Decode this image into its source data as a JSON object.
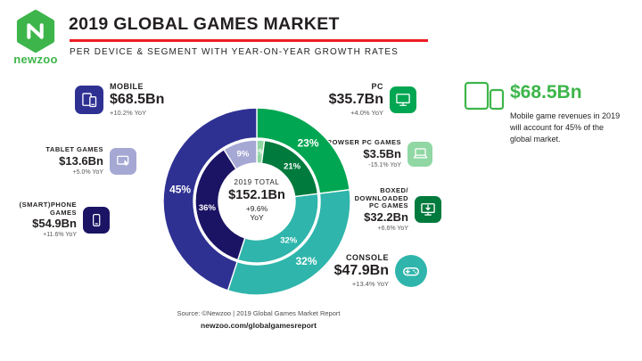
{
  "header": {
    "brand": "newzoo",
    "title": "2019 GLOBAL GAMES MARKET",
    "subtitle": "PER DEVICE & SEGMENT WITH YEAR-ON-YEAR GROWTH RATES",
    "accent_color": "#EC1C24",
    "brand_color": "#3DB54A"
  },
  "segments": {
    "mobile": {
      "label": "MOBILE",
      "value": "$68.5Bn",
      "growth": "+10.2% YoY",
      "color": "#2E3192"
    },
    "tablet": {
      "label": "TABLET GAMES",
      "value": "$13.6Bn",
      "growth": "+5.0% YoY",
      "color": "#A6A8D4"
    },
    "smartphone": {
      "label1": "(SMART)PHONE",
      "label2": "GAMES",
      "value": "$54.9Bn",
      "growth": "+11.6% YoY",
      "color": "#1B1464"
    },
    "pc": {
      "label": "PC",
      "value": "$35.7Bn",
      "growth": "+4.0% YoY",
      "color": "#00A651"
    },
    "browser": {
      "label": "BROWSER PC GAMES",
      "value": "$3.5Bn",
      "growth": "-15.1% YoY",
      "color": "#90D7A4"
    },
    "boxed": {
      "label1": "BOXED/",
      "label2": "DOWNLOADED",
      "label3": "PC GAMES",
      "value": "$32.2Bn",
      "growth": "+6.6% YoY",
      "color": "#007A3D"
    },
    "console": {
      "label": "CONSOLE",
      "value": "$47.9Bn",
      "growth": "+13.4% YoY",
      "color": "#2FB5AB"
    }
  },
  "highlight": {
    "value": "$68.5Bn",
    "description": "Mobile game revenues in 2019 will account for 45% of the global market.",
    "color": "#3DB54A"
  },
  "footer": {
    "source": "Source: ©Newzoo | 2019 Global Games Market Report",
    "link": "newzoo.com/globalgamesreport"
  },
  "chart_data": {
    "type": "donut",
    "start_angle": 0,
    "direction": "clockwise",
    "title": "2019 Global Games Market per Device & Segment",
    "center": {
      "line1": "2019 TOTAL",
      "line2": "$152.1Bn",
      "line3": "+9.6%",
      "line4": "YoY"
    },
    "units": "percent share of $152.1Bn total",
    "rings": [
      {
        "name": "outer",
        "r_outer": 105,
        "r_inner": 71,
        "label_r": 87,
        "segments": [
          {
            "id": "pc",
            "label": "PC",
            "pct": 23,
            "value": "$35.7Bn",
            "growth": "+4.0% YoY",
            "color": "#00A651"
          },
          {
            "id": "console",
            "label": "Console",
            "pct": 32,
            "value": "$47.9Bn",
            "growth": "+13.4% YoY",
            "color": "#2FB5AB"
          },
          {
            "id": "mobile",
            "label": "Mobile",
            "pct": 45,
            "value": "$68.5Bn",
            "growth": "+10.2% YoY",
            "color": "#2E3192"
          }
        ]
      },
      {
        "name": "inner",
        "r_outer": 69,
        "r_inner": 43,
        "label_r": 56,
        "segments": [
          {
            "id": "browser-pc",
            "label": "Browser PC Games",
            "pct": 2,
            "value": "$3.5Bn",
            "growth": "-15.1% YoY",
            "color": "#90D7A4"
          },
          {
            "id": "boxed-pc",
            "label": "Boxed/Downloaded PC Games",
            "pct": 21,
            "value": "$32.2Bn",
            "growth": "+6.6% YoY",
            "color": "#007A3D"
          },
          {
            "id": "console-inner",
            "label": "Console",
            "pct": 32,
            "value": "$47.9Bn",
            "growth": "+13.4% YoY",
            "color": "#2FB5AB"
          },
          {
            "id": "smartphone",
            "label": "(Smart)phone Games",
            "pct": 36,
            "value": "$54.9Bn",
            "growth": "+11.6% YoY",
            "color": "#1B1464"
          },
          {
            "id": "tablet",
            "label": "Tablet Games",
            "pct": 9,
            "value": "$13.6Bn",
            "growth": "+5.0% YoY",
            "color": "#A6A8D4"
          }
        ]
      }
    ]
  }
}
